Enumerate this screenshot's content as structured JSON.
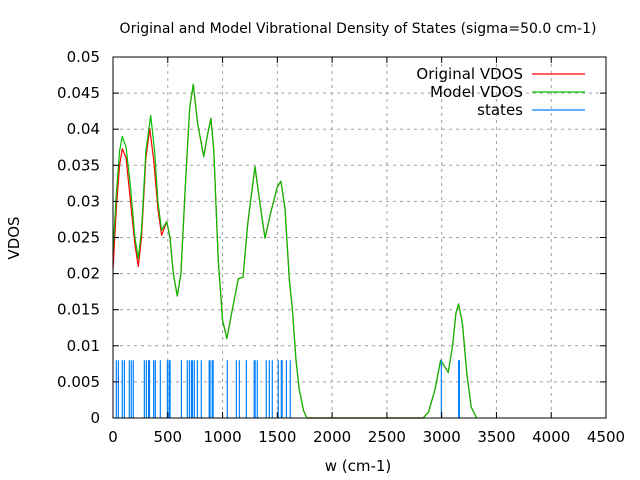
{
  "chart_data": {
    "type": "line",
    "title": "Original and Model Vibrational Density of States (sigma=50.0 cm-1)",
    "xlabel": "w (cm-1)",
    "ylabel": "VDOS",
    "xlim": [
      0,
      4500
    ],
    "ylim": [
      0,
      0.05
    ],
    "xticks": [
      "0",
      "500",
      "1000",
      "1500",
      "2000",
      "2500",
      "3000",
      "3500",
      "4000",
      "4500"
    ],
    "yticks": [
      "0",
      "0.005",
      "0.01",
      "0.015",
      "0.02",
      "0.025",
      "0.03",
      "0.035",
      "0.04",
      "0.045",
      "0.05"
    ],
    "grid": true,
    "legend_position": "top-right",
    "series": [
      {
        "name": "Original VDOS",
        "style": "line",
        "color": "#ff0000",
        "points": [
          [
            0,
            0.0205
          ],
          [
            30,
            0.029
          ],
          [
            60,
            0.035
          ],
          [
            85,
            0.0373
          ],
          [
            120,
            0.036
          ],
          [
            160,
            0.03
          ],
          [
            200,
            0.024
          ],
          [
            231,
            0.021
          ],
          [
            260,
            0.025
          ],
          [
            300,
            0.036
          ],
          [
            335,
            0.0401
          ],
          [
            370,
            0.036
          ],
          [
            410,
            0.029
          ],
          [
            444,
            0.0253
          ],
          [
            490,
            0.0272
          ],
          [
            520,
            0.025
          ],
          [
            550,
            0.02
          ],
          [
            587,
            0.0169
          ],
          [
            620,
            0.02
          ],
          [
            660,
            0.032
          ],
          [
            700,
            0.043
          ],
          [
            733,
            0.0462
          ],
          [
            770,
            0.041
          ],
          [
            828,
            0.0362
          ],
          [
            860,
            0.039
          ],
          [
            894,
            0.0415
          ],
          [
            920,
            0.037
          ],
          [
            960,
            0.022
          ],
          [
            1000,
            0.0135
          ],
          [
            1040,
            0.011
          ],
          [
            1083,
            0.0145
          ],
          [
            1144,
            0.0193
          ],
          [
            1187,
            0.0195
          ],
          [
            1230,
            0.027
          ],
          [
            1296,
            0.0348
          ],
          [
            1330,
            0.031
          ],
          [
            1387,
            0.0249
          ],
          [
            1440,
            0.0285
          ],
          [
            1500,
            0.032
          ],
          [
            1533,
            0.0328
          ],
          [
            1570,
            0.029
          ],
          [
            1610,
            0.019
          ],
          [
            1637,
            0.0152
          ],
          [
            1670,
            0.008
          ],
          [
            1700,
            0.004
          ],
          [
            1740,
            0.001
          ],
          [
            1770,
            0
          ],
          [
            2830,
            0
          ],
          [
            2880,
            0.0008
          ],
          [
            2940,
            0.004
          ],
          [
            2990,
            0.008
          ],
          [
            3020,
            0.0073
          ],
          [
            3060,
            0.0063
          ],
          [
            3100,
            0.01
          ],
          [
            3130,
            0.0145
          ],
          [
            3155,
            0.0158
          ],
          [
            3190,
            0.013
          ],
          [
            3230,
            0.006
          ],
          [
            3270,
            0.0015
          ],
          [
            3320,
            0
          ]
        ]
      },
      {
        "name": "Model VDOS",
        "style": "line",
        "color": "#00c000",
        "points": [
          [
            0,
            0.023
          ],
          [
            30,
            0.031
          ],
          [
            60,
            0.037
          ],
          [
            85,
            0.039
          ],
          [
            120,
            0.0375
          ],
          [
            160,
            0.032
          ],
          [
            200,
            0.025
          ],
          [
            231,
            0.0221
          ],
          [
            260,
            0.026
          ],
          [
            300,
            0.037
          ],
          [
            344,
            0.0419
          ],
          [
            380,
            0.037
          ],
          [
            410,
            0.03
          ],
          [
            444,
            0.026
          ],
          [
            490,
            0.0272
          ],
          [
            520,
            0.025
          ],
          [
            550,
            0.02
          ],
          [
            587,
            0.0169
          ],
          [
            620,
            0.02
          ],
          [
            660,
            0.032
          ],
          [
            700,
            0.043
          ],
          [
            733,
            0.0462
          ],
          [
            770,
            0.041
          ],
          [
            828,
            0.0362
          ],
          [
            860,
            0.039
          ],
          [
            894,
            0.0415
          ],
          [
            920,
            0.037
          ],
          [
            960,
            0.022
          ],
          [
            1000,
            0.0135
          ],
          [
            1040,
            0.011
          ],
          [
            1083,
            0.0145
          ],
          [
            1144,
            0.0193
          ],
          [
            1187,
            0.0195
          ],
          [
            1230,
            0.027
          ],
          [
            1296,
            0.0348
          ],
          [
            1330,
            0.031
          ],
          [
            1387,
            0.0249
          ],
          [
            1440,
            0.0285
          ],
          [
            1500,
            0.032
          ],
          [
            1533,
            0.0328
          ],
          [
            1570,
            0.029
          ],
          [
            1610,
            0.019
          ],
          [
            1637,
            0.0152
          ],
          [
            1670,
            0.008
          ],
          [
            1700,
            0.004
          ],
          [
            1740,
            0.001
          ],
          [
            1770,
            0
          ],
          [
            2830,
            0
          ],
          [
            2880,
            0.0008
          ],
          [
            2940,
            0.004
          ],
          [
            2990,
            0.008
          ],
          [
            3020,
            0.0073
          ],
          [
            3060,
            0.0063
          ],
          [
            3100,
            0.01
          ],
          [
            3130,
            0.0145
          ],
          [
            3155,
            0.0158
          ],
          [
            3190,
            0.013
          ],
          [
            3230,
            0.006
          ],
          [
            3270,
            0.0015
          ],
          [
            3320,
            0
          ]
        ]
      },
      {
        "name": "states",
        "style": "impulses",
        "color": "#0080ff",
        "height": 0.008,
        "x": [
          30,
          49,
          85,
          104,
          149,
          167,
          185,
          286,
          304,
          325,
          333,
          371,
          386,
          432,
          496,
          512,
          521,
          624,
          678,
          697,
          716,
          725,
          742,
          770,
          806,
          878,
          886,
          906,
          914,
          1043,
          1126,
          1153,
          1217,
          1289,
          1297,
          1317,
          1399,
          1427,
          1454,
          1509,
          1536,
          1544,
          1583,
          1618,
          2997,
          3155,
          3162
        ]
      }
    ]
  }
}
